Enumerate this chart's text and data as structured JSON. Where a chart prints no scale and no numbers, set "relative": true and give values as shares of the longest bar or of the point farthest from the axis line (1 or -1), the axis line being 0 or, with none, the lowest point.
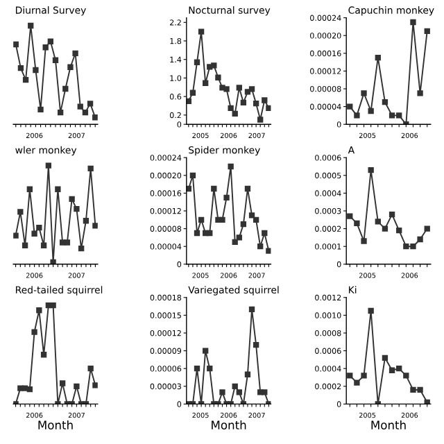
{
  "chart_data": [
    {
      "type": "line",
      "title": "Diurnal Survey",
      "relative": true,
      "tick_labels": false,
      "marker": "square",
      "line_style": "solid",
      "grid": false,
      "color": "#333333",
      "annotations": [
        "2006",
        "2007"
      ],
      "categories": [
        null,
        null,
        null,
        null,
        null,
        null,
        null,
        null,
        null,
        null,
        null,
        null,
        null,
        null,
        null,
        null,
        null
      ],
      "values": [
        0.81,
        0.57,
        0.45,
        1,
        0.55,
        0.15,
        0.78,
        0.84,
        0.65,
        0.12,
        0.36,
        0.58,
        0.72,
        0.18,
        0.12,
        0.21,
        0.07
      ]
    },
    {
      "type": "line",
      "title": "Nocturnal survey",
      "tick_labels": "y",
      "marker": "square",
      "line_style": "solid",
      "grid": false,
      "color": "#333333",
      "annotations": [
        "2005",
        "2006",
        "2007"
      ],
      "ylim": [
        0,
        2.3
      ],
      "yticks": [
        0,
        0.2,
        0.6,
        {
          "value": 1,
          "label": "1.0"
        },
        1.4,
        1.8,
        2.2
      ],
      "categories": [
        null,
        null,
        null,
        null,
        null,
        null,
        null,
        null,
        null,
        null,
        null,
        null,
        null,
        null,
        null,
        null,
        null,
        null,
        null,
        null
      ],
      "values": [
        0.5,
        0.68,
        1.34,
        2.0,
        0.89,
        1.24,
        1.27,
        1.01,
        0.79,
        0.76,
        0.35,
        0.23,
        0.79,
        0.47,
        0.7,
        0.76,
        0.45,
        0.1,
        0.52,
        0.35
      ]
    },
    {
      "type": "line",
      "title": "Capuchin monkey",
      "tick_labels": "y",
      "marker": "square",
      "line_style": "solid",
      "grid": false,
      "color": "#333333",
      "annotations": [
        "2005",
        "2006"
      ],
      "ylim": [
        0,
        0.00024
      ],
      "yticks": [
        0,
        {
          "value": 4e-05,
          "label": "0.00004"
        },
        {
          "value": 8e-05,
          "label": "0.00008"
        },
        {
          "value": 0.00012,
          "label": "0.00012"
        },
        {
          "value": 0.00016,
          "label": "0.00016"
        },
        {
          "value": 0.0002,
          "label": "0.00020"
        },
        {
          "value": 0.00024,
          "label": "0.00024"
        }
      ],
      "categories": [
        null,
        null,
        null,
        null,
        null,
        null,
        null,
        null,
        null,
        null,
        null,
        null
      ],
      "values": [
        4e-05,
        2e-05,
        7e-05,
        3e-05,
        0.00015,
        5e-05,
        2e-05,
        2e-05,
        0,
        0.00023,
        7e-05,
        0.00021
      ]
    },
    {
      "type": "line",
      "title": "wler monkey",
      "relative": true,
      "tick_labels": false,
      "marker": "square",
      "line_style": "solid",
      "grid": false,
      "color": "#333333",
      "annotations": [
        "2006",
        "2007"
      ],
      "categories": [
        null,
        null,
        null,
        null,
        null,
        null,
        null,
        null,
        null,
        null,
        null,
        null,
        null,
        null,
        null,
        null,
        null,
        null
      ],
      "values": [
        0.29,
        0.53,
        0.19,
        0.76,
        0.31,
        0.37,
        0.19,
        1,
        0.02,
        0.76,
        0.22,
        0.22,
        0.66,
        0.56,
        0.16,
        0.44,
        0.97,
        0.39
      ]
    },
    {
      "type": "line",
      "title": "Spider monkey",
      "tick_labels": "y",
      "marker": "square",
      "line_style": "solid",
      "grid": false,
      "color": "#333333",
      "annotations": [
        "2005",
        "2006",
        "2007"
      ],
      "ylim": [
        0,
        0.00024
      ],
      "yticks": [
        0,
        {
          "value": 4e-05,
          "label": "0.00004"
        },
        {
          "value": 8e-05,
          "label": "0.00008"
        },
        {
          "value": 0.00012,
          "label": "0.00012"
        },
        {
          "value": 0.00016,
          "label": "0.00016"
        },
        {
          "value": 0.0002,
          "label": "0.00020"
        },
        {
          "value": 0.00024,
          "label": "0.00024"
        }
      ],
      "categories": [
        null,
        null,
        null,
        null,
        null,
        null,
        null,
        null,
        null,
        null,
        null,
        null,
        null,
        null,
        null,
        null,
        null,
        null,
        null,
        null
      ],
      "values": [
        0.00017,
        0.0002,
        7e-05,
        0.0001,
        7e-05,
        7e-05,
        0.00017,
        0.0001,
        0.0001,
        0.00015,
        0.00022,
        5e-05,
        6e-05,
        9e-05,
        0.00017,
        0.00011,
        0.0001,
        4e-05,
        7e-05,
        3e-05
      ]
    },
    {
      "type": "line",
      "title": "A",
      "tick_labels": "y",
      "marker": "square",
      "line_style": "solid",
      "grid": false,
      "color": "#333333",
      "annotations": [
        "2005",
        "2006"
      ],
      "ylim": [
        0,
        0.0006
      ],
      "yticks": [
        0,
        {
          "value": 0.0001,
          "label": "0.0001"
        },
        {
          "value": 0.0002,
          "label": "0.0002"
        },
        {
          "value": 0.0003,
          "label": "0.0003"
        },
        {
          "value": 0.0004,
          "label": "0.0004"
        },
        {
          "value": 0.0005,
          "label": "0.0005"
        },
        {
          "value": 0.0006,
          "label": "0.0006"
        }
      ],
      "categories": [
        null,
        null,
        null,
        null,
        null,
        null,
        null,
        null,
        null,
        null,
        null,
        null
      ],
      "values": [
        0.00027,
        0.00023,
        0.00013,
        0.00053,
        0.00024,
        0.0002,
        0.00028,
        0.00019,
        0.0001,
        0.0001,
        0.00014,
        0.0002
      ]
    },
    {
      "type": "line",
      "title": "Red-tailed squirrel",
      "xlabel": "Month",
      "relative": true,
      "tick_labels": false,
      "marker": "square",
      "line_style": "solid",
      "grid": false,
      "color": "#333333",
      "annotations": [
        "2006",
        "2007"
      ],
      "categories": [
        null,
        null,
        null,
        null,
        null,
        null,
        null,
        null,
        null,
        null,
        null,
        null,
        null,
        null,
        null,
        null,
        null,
        null
      ],
      "values": [
        0,
        0.16,
        0.16,
        0.15,
        0.73,
        0.95,
        0.5,
        1,
        1,
        0,
        0.21,
        0,
        0,
        0.18,
        0,
        0,
        0.36,
        0.19
      ]
    },
    {
      "type": "line",
      "title": "Variegated squirrel",
      "xlabel": "Month",
      "tick_labels": "y",
      "marker": "square",
      "line_style": "solid",
      "grid": false,
      "color": "#333333",
      "annotations": [
        "2005",
        "2006",
        "2007"
      ],
      "ylim": [
        0,
        0.00018
      ],
      "yticks": [
        0,
        {
          "value": 3e-05,
          "label": "0.00003"
        },
        {
          "value": 6e-05,
          "label": "0.00006"
        },
        {
          "value": 9e-05,
          "label": "0.00009"
        },
        {
          "value": 0.00012,
          "label": "0.00012"
        },
        {
          "value": 0.00015,
          "label": "0.00015"
        },
        {
          "value": 0.00018,
          "label": "0.00018"
        }
      ],
      "categories": [
        null,
        null,
        null,
        null,
        null,
        null,
        null,
        null,
        null,
        null,
        null,
        null,
        null,
        null,
        null,
        null,
        null,
        null,
        null,
        null
      ],
      "values": [
        0,
        0,
        6e-05,
        0,
        9e-05,
        6e-05,
        0,
        0,
        2e-05,
        0,
        0,
        3e-05,
        2e-05,
        0,
        5e-05,
        0.00016,
        0.0001,
        2e-05,
        2e-05,
        0
      ]
    },
    {
      "type": "line",
      "title": "Ki",
      "xlabel": "Month",
      "tick_labels": "y",
      "marker": "square",
      "line_style": "solid",
      "grid": false,
      "color": "#333333",
      "annotations": [
        "2005",
        "2006"
      ],
      "ylim": [
        0,
        0.0012
      ],
      "yticks": [
        0,
        {
          "value": 0.0002,
          "label": "0.0002"
        },
        {
          "value": 0.0004,
          "label": "0.0004"
        },
        {
          "value": 0.0006,
          "label": "0.0006"
        },
        {
          "value": 0.0008,
          "label": "0.0008"
        },
        {
          "value": 0.001,
          "label": "0.0010"
        },
        {
          "value": 0.0012,
          "label": "0.0012"
        }
      ],
      "categories": [
        null,
        null,
        null,
        null,
        null,
        null,
        null,
        null,
        null,
        null,
        null,
        null
      ],
      "values": [
        0.00032,
        0.00024,
        0.00032,
        0.00105,
        0,
        0.00052,
        0.00038,
        0.0004,
        0.00032,
        0.00016,
        0.00016,
        2e-05
      ]
    }
  ]
}
